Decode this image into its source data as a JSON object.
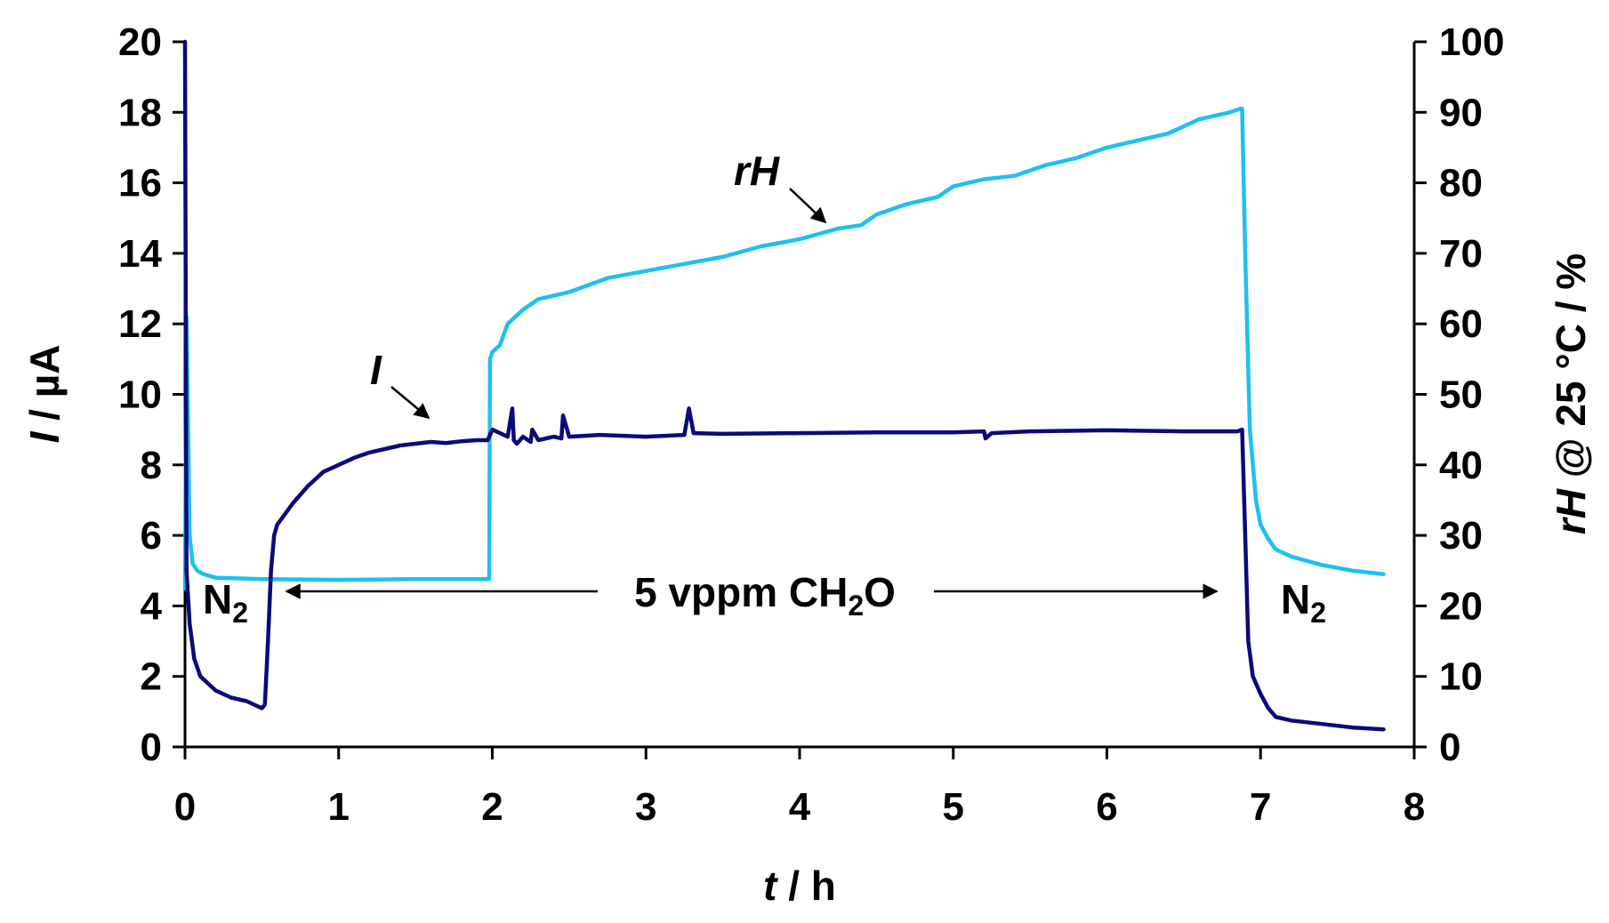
{
  "chart_data": {
    "type": "line",
    "x_axis": {
      "title_italic": "t",
      "title_rest": " / h",
      "min": 0,
      "max": 8,
      "ticks": [
        "0",
        "1",
        "2",
        "3",
        "4",
        "5",
        "6",
        "7",
        "8"
      ]
    },
    "y_left": {
      "title_italic": "I",
      "title_rest": " / µA",
      "min": 0,
      "max": 20,
      "ticks": [
        "0",
        "2",
        "4",
        "6",
        "8",
        "10",
        "12",
        "14",
        "16",
        "18",
        "20"
      ]
    },
    "y_right": {
      "title_italic": "rH",
      "title_rest": " @ 25 °C / %",
      "min": 0,
      "max": 100,
      "ticks": [
        "0",
        "10",
        "20",
        "30",
        "40",
        "50",
        "60",
        "70",
        "80",
        "90",
        "100"
      ]
    },
    "grid": false,
    "series": [
      {
        "name": "I",
        "axis": "left",
        "color": "#0a0a7a",
        "x": [
          0.0,
          0.005,
          0.01,
          0.03,
          0.06,
          0.1,
          0.15,
          0.2,
          0.3,
          0.4,
          0.5,
          0.52,
          0.54,
          0.56,
          0.58,
          0.6,
          0.65,
          0.7,
          0.8,
          0.9,
          1.0,
          1.1,
          1.2,
          1.3,
          1.4,
          1.5,
          1.6,
          1.7,
          1.8,
          1.9,
          1.97,
          2.0,
          2.05,
          2.1,
          2.13,
          2.14,
          2.16,
          2.2,
          2.25,
          2.26,
          2.3,
          2.4,
          2.45,
          2.46,
          2.5,
          2.7,
          3.0,
          3.25,
          3.28,
          3.31,
          3.5,
          4.0,
          4.5,
          5.0,
          5.2,
          5.21,
          5.25,
          5.5,
          6.0,
          6.5,
          6.85,
          6.88,
          6.9,
          6.92,
          6.95,
          7.0,
          7.05,
          7.1,
          7.2,
          7.4,
          7.6,
          7.8
        ],
        "y": [
          20.0,
          12.0,
          5.0,
          3.5,
          2.5,
          2.0,
          1.8,
          1.6,
          1.4,
          1.3,
          1.1,
          1.2,
          3.0,
          5.0,
          6.0,
          6.3,
          6.6,
          6.9,
          7.4,
          7.8,
          8.0,
          8.2,
          8.35,
          8.45,
          8.55,
          8.6,
          8.65,
          8.62,
          8.67,
          8.7,
          8.7,
          9.0,
          8.9,
          8.8,
          9.6,
          8.7,
          8.6,
          8.8,
          8.65,
          9.0,
          8.7,
          8.8,
          8.75,
          9.4,
          8.8,
          8.85,
          8.8,
          8.85,
          9.6,
          8.9,
          8.88,
          8.9,
          8.92,
          8.92,
          8.95,
          8.75,
          8.9,
          8.95,
          8.98,
          8.95,
          8.95,
          9.0,
          6.0,
          3.0,
          2.0,
          1.5,
          1.1,
          0.85,
          0.75,
          0.65,
          0.55,
          0.5
        ]
      },
      {
        "name": "rH",
        "axis": "right",
        "color": "#1ec0f0",
        "x": [
          0.0,
          0.01,
          0.02,
          0.03,
          0.05,
          0.08,
          0.12,
          0.2,
          0.5,
          1.0,
          1.5,
          1.97,
          1.98,
          1.985,
          2.0,
          2.05,
          2.1,
          2.2,
          2.3,
          2.5,
          2.75,
          3.0,
          3.25,
          3.5,
          3.75,
          4.0,
          4.25,
          4.4,
          4.5,
          4.7,
          4.9,
          5.0,
          5.2,
          5.4,
          5.6,
          5.8,
          6.0,
          6.2,
          6.4,
          6.6,
          6.8,
          6.87,
          6.88,
          6.9,
          6.93,
          6.97,
          7.0,
          7.05,
          7.1,
          7.2,
          7.4,
          7.6,
          7.8
        ],
        "y": [
          22.5,
          61.0,
          45.0,
          30.0,
          26.0,
          25.0,
          24.5,
          24.0,
          23.8,
          23.7,
          23.8,
          23.8,
          23.8,
          55.0,
          56.0,
          57.0,
          60.0,
          62.0,
          63.5,
          64.5,
          66.5,
          67.5,
          68.5,
          69.5,
          71.0,
          72.0,
          73.5,
          74.0,
          75.5,
          77.0,
          78.0,
          79.5,
          80.5,
          81.0,
          82.5,
          83.5,
          85.0,
          86.0,
          87.0,
          89.0,
          90.0,
          90.5,
          90.5,
          70.0,
          45.0,
          35.0,
          31.5,
          29.5,
          28.0,
          27.0,
          25.8,
          25.0,
          24.5
        ]
      }
    ],
    "annotations": {
      "rh_label": "rH",
      "i_label": "I",
      "n2_left": "N",
      "n2_left_sub": "2",
      "n2_right": "N",
      "n2_right_sub": "2",
      "gas_main": "5 vppm CH",
      "gas_sub": "2",
      "gas_end": "O"
    }
  }
}
